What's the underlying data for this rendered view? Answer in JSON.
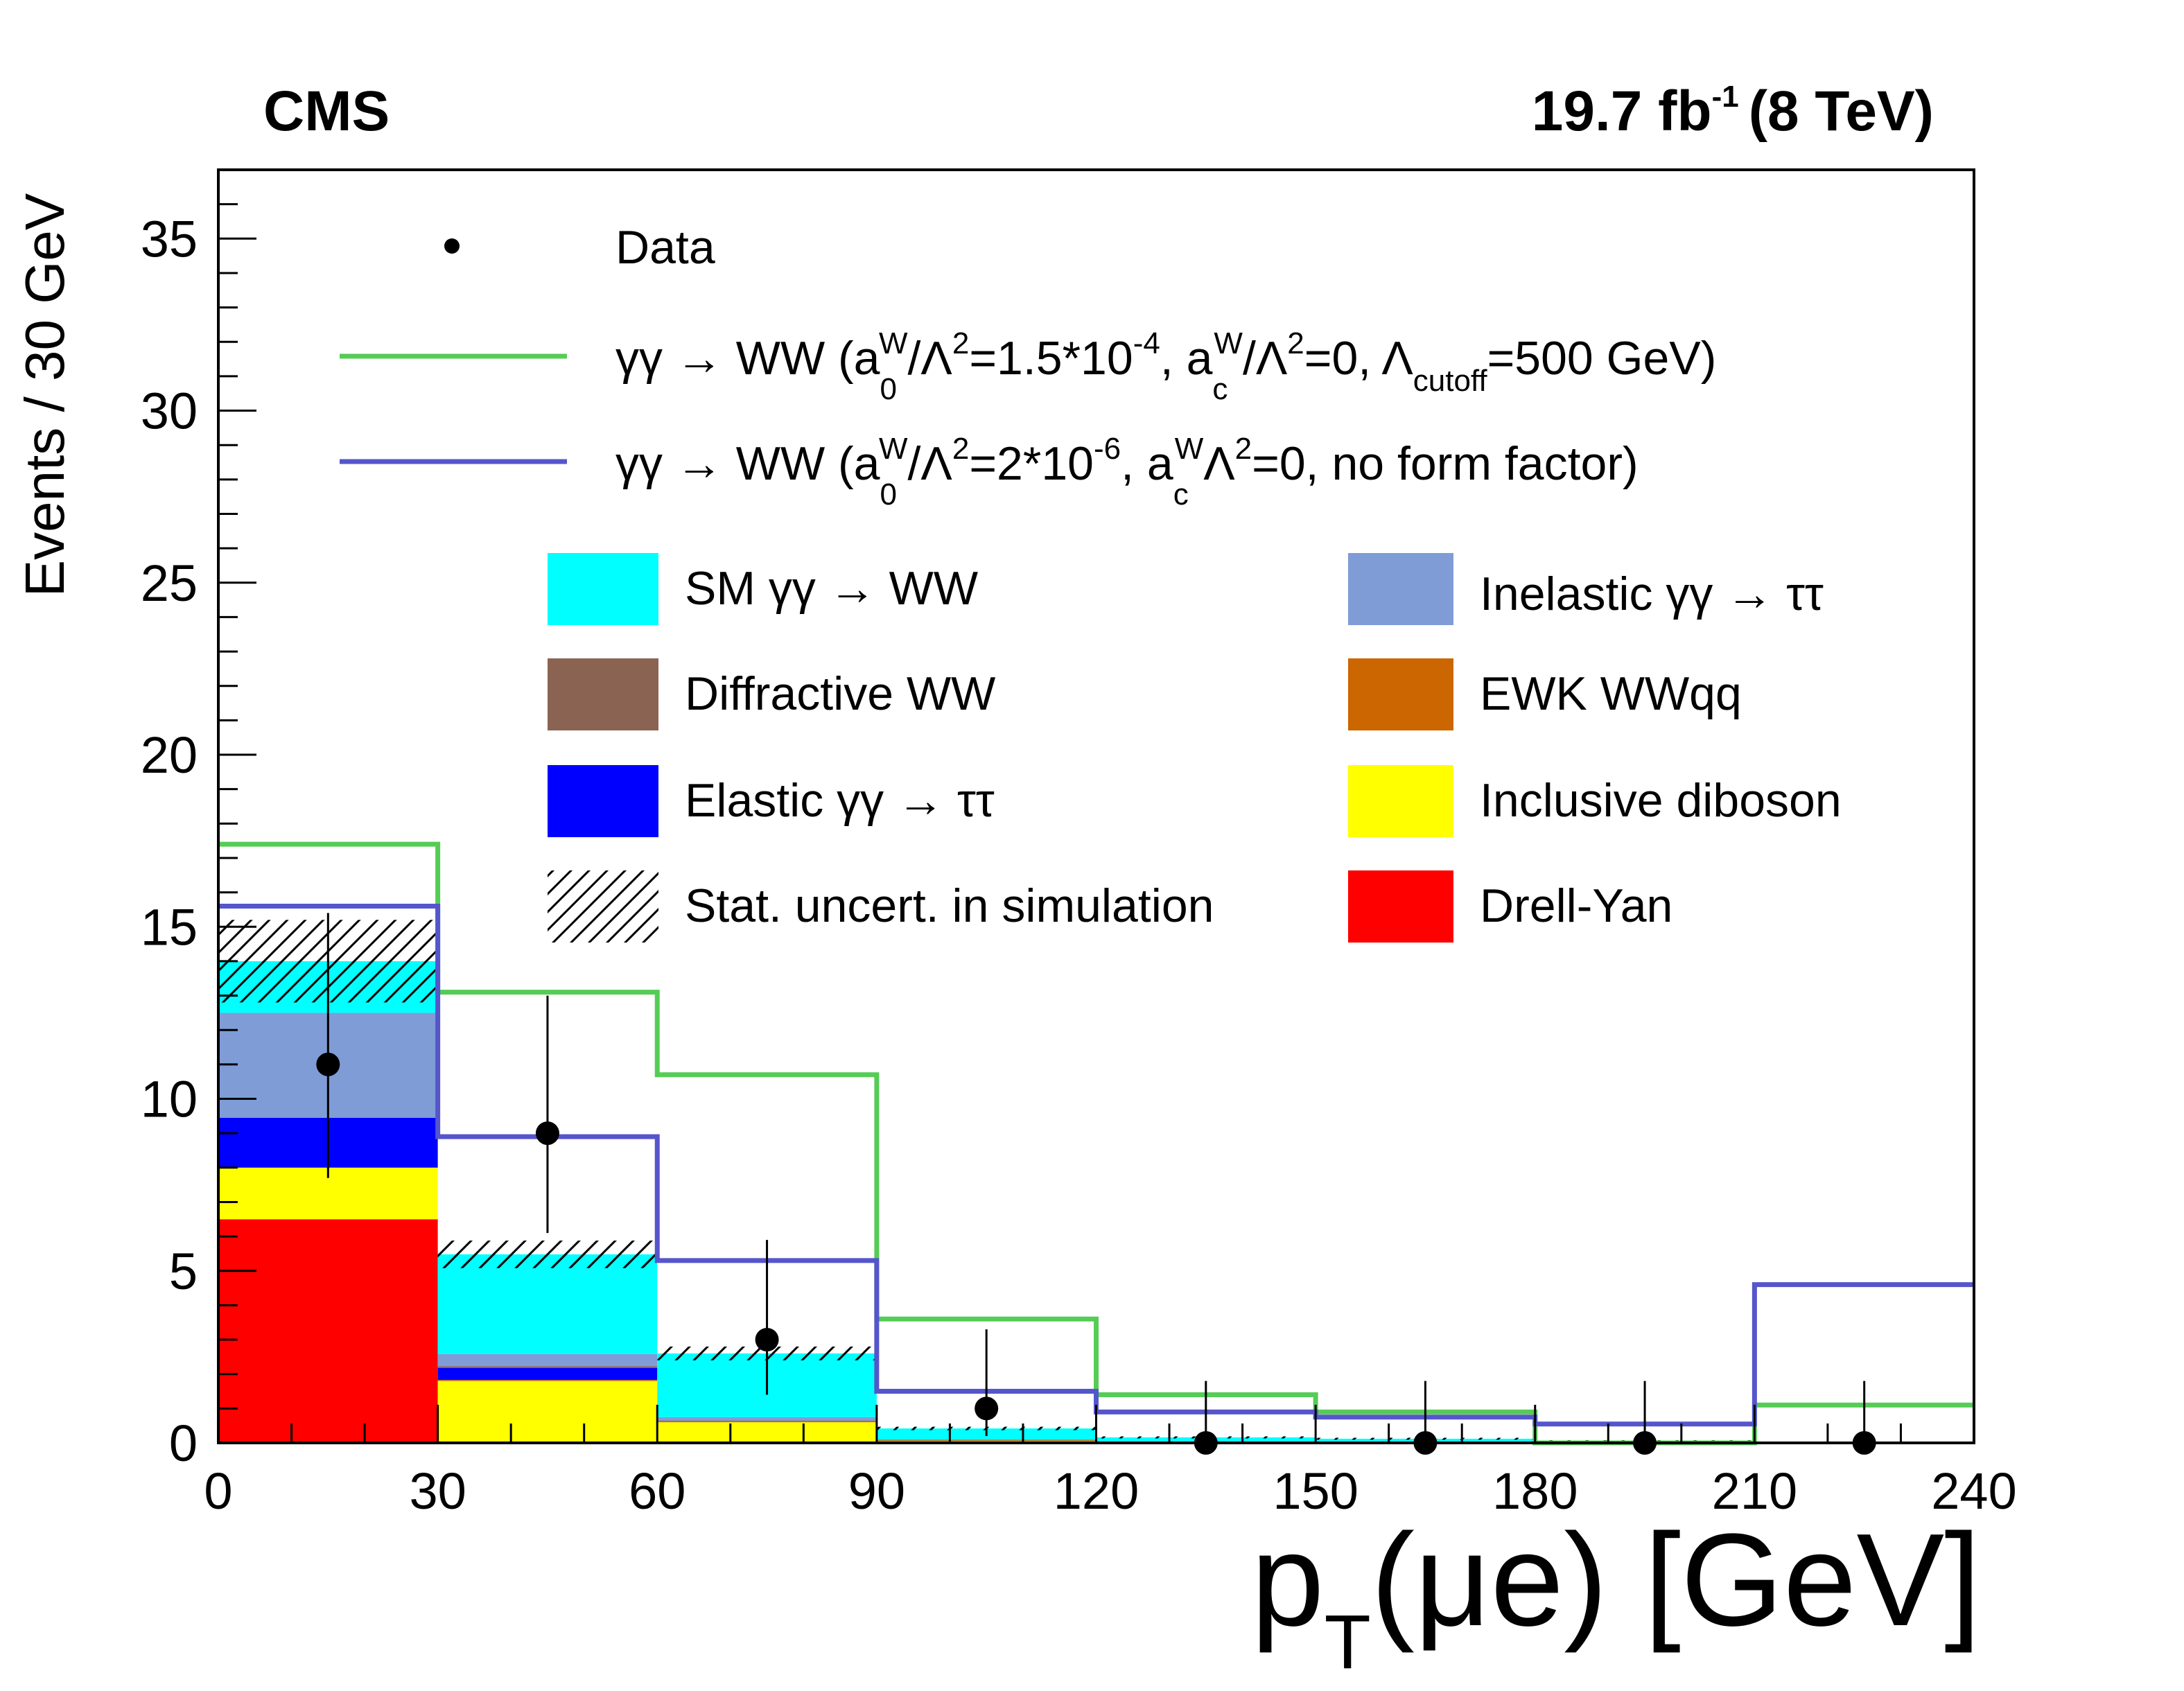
{
  "chart_data": {
    "type": "bar",
    "subtype": "stacked-histogram",
    "experiment_label": "CMS",
    "lumi_label": {
      "value": "19.7 fb",
      "exp": "-1",
      "energy": "(8 TeV)"
    },
    "ylabel": "Events / 30 GeV",
    "xlabel": {
      "main": "p",
      "sub": "T",
      "rest": "(μe) [GeV]"
    },
    "xlim": [
      0,
      240
    ],
    "ylim": [
      0,
      37
    ],
    "x_ticks": [
      "0",
      "30",
      "60",
      "90",
      "120",
      "150",
      "180",
      "210",
      "240"
    ],
    "x_tick_values": [
      0,
      30,
      60,
      90,
      120,
      150,
      180,
      210,
      240
    ],
    "y_ticks": [
      "0",
      "5",
      "10",
      "15",
      "20",
      "25",
      "30",
      "35"
    ],
    "y_tick_values": [
      0,
      5,
      10,
      15,
      20,
      25,
      30,
      35
    ],
    "bin_edges": [
      0,
      30,
      60,
      90,
      120,
      150,
      180,
      210,
      240
    ],
    "stack": [
      {
        "key": "dy",
        "name": "Drell-Yan",
        "color": "#ff0000",
        "values": [
          6.5,
          0,
          0,
          0,
          0,
          0,
          0,
          0
        ]
      },
      {
        "key": "diboson",
        "name": "Inclusive diboson",
        "color": "#ffff00",
        "values": [
          1.5,
          1.8,
          0.6,
          0.05,
          0.02,
          0.02,
          0.02,
          0.0
        ]
      },
      {
        "key": "ewk",
        "name": "EWK WWqq",
        "color": "#cc6600",
        "values": [
          0.0,
          0.03,
          0.02,
          0.02,
          0.01,
          0.01,
          0.01,
          0.0
        ]
      },
      {
        "key": "elastic",
        "name": "Elastic γγ → ττ",
        "color": "#0000ff",
        "values": [
          1.45,
          0.35,
          0.0,
          0.0,
          0.0,
          0.0,
          0.0,
          0.0
        ]
      },
      {
        "key": "diffractive",
        "name": "Diffractive WW",
        "color": "#8b6353",
        "values": [
          0.0,
          0.05,
          0.03,
          0.02,
          0.01,
          0.01,
          0.0,
          0.0
        ]
      },
      {
        "key": "inelastic",
        "name": "Inelastic γγ → ττ",
        "color": "#7f9cd6",
        "values": [
          3.05,
          0.35,
          0.1,
          0.0,
          0.0,
          0.0,
          0.0,
          0.0
        ]
      },
      {
        "key": "sm",
        "name": "SM γγ → WW",
        "color": "#00ffff",
        "values": [
          1.5,
          2.9,
          1.85,
          0.33,
          0.12,
          0.08,
          0.03,
          0.0
        ]
      }
    ],
    "stat_uncert": {
      "name": "Stat. uncert. in simulation",
      "half_width": [
        1.2,
        0.4,
        0.2,
        0.05,
        0.03,
        0.03,
        0.02,
        0.0
      ]
    },
    "signal_lines": [
      {
        "key": "green",
        "color": "#55cc55",
        "values": [
          17.4,
          13.1,
          10.7,
          3.6,
          1.4,
          0.9,
          0.0,
          1.1
        ],
        "label": {
          "pre": "γγ → WW (a",
          "sub1": "0",
          "sup1": "W",
          "p2": "/Λ",
          "sup2": "2",
          "p3": "=1.5*10",
          "sup3": "-4",
          "p4": ", a",
          "sub4": "c",
          "sup4": "W",
          "p5": "/Λ",
          "sup5": "2",
          "p6": "=0, Λ",
          "sub6": "cutoff",
          "p7": "=500 GeV)"
        }
      },
      {
        "key": "blue",
        "color": "#5555cc",
        "values": [
          15.6,
          8.9,
          5.3,
          1.5,
          0.9,
          0.75,
          0.55,
          4.6
        ],
        "label": {
          "pre": "γγ → WW (a",
          "sub1": "0",
          "sup1": "W",
          "p2": "/Λ",
          "sup2": "2",
          "p3": "=2*10",
          "sup3": "-6",
          "p4": ", a",
          "sub4": "c",
          "sup4": "W",
          "p5": "Λ",
          "sup5": "2",
          "p6": "=0, no form factor)",
          "sub6": "",
          "p7": ""
        }
      }
    ],
    "data_points": {
      "name": "Data",
      "x": [
        15,
        45,
        75,
        105,
        135,
        165,
        195,
        225
      ],
      "y": [
        11,
        9,
        3,
        1,
        0,
        0,
        0,
        0
      ],
      "err_low": [
        3.3,
        2.9,
        1.6,
        0.8,
        0,
        0,
        0,
        0
      ],
      "err_high": [
        4.4,
        4.0,
        2.9,
        2.3,
        1.8,
        1.8,
        1.8,
        1.8
      ]
    },
    "legend_placement": "top-right"
  }
}
